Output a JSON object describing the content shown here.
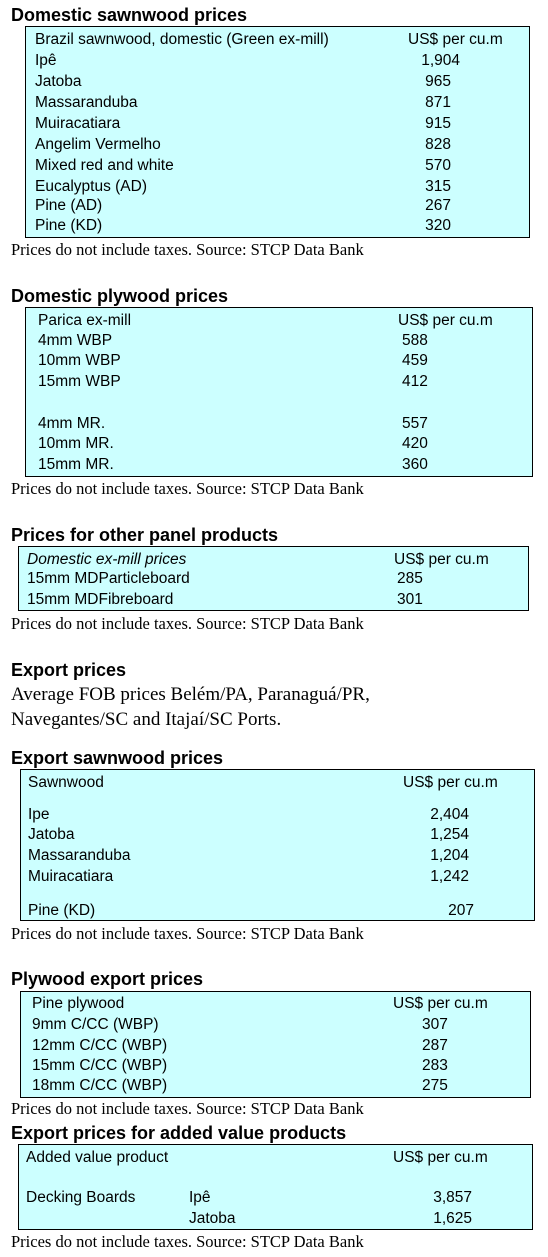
{
  "domestic_sawnwood": {
    "title": "Domestic sawnwood prices",
    "header_label": "Brazil sawnwood, domestic (Green ex-mill)",
    "header_unit": "US$ per cu.m",
    "rows": [
      {
        "label": "Ipê",
        "value": "1,904"
      },
      {
        "label": "Jatoba",
        "value": "965"
      },
      {
        "label": "Massaranduba",
        "value": "871"
      },
      {
        "label": "Muiracatiara",
        "value": "915"
      },
      {
        "label": "Angelim Vermelho",
        "value": "828"
      },
      {
        "label": "Mixed red and white",
        "value": "570"
      },
      {
        "label": "Eucalyptus (AD)",
        "value": "315"
      },
      {
        "label": "Pine (AD)",
        "value": "267"
      },
      {
        "label": "Pine (KD)",
        "value": "320"
      }
    ],
    "note": "Prices do not include taxes. Source: STCP Data Bank"
  },
  "domestic_plywood": {
    "title": "Domestic plywood prices",
    "header_label": "Parica ex-mill",
    "header_unit": "US$ per cu.m",
    "rows": [
      {
        "label": "4mm WBP",
        "value": "588"
      },
      {
        "label": "10mm WBP",
        "value": "459"
      },
      {
        "label": "15mm WBP",
        "value": "412"
      },
      {
        "label": "4mm MR.",
        "value": "557"
      },
      {
        "label": "10mm MR.",
        "value": "420"
      },
      {
        "label": "15mm MR.",
        "value": "360"
      }
    ],
    "note": "Prices do not include taxes. Source: STCP Data Bank"
  },
  "other_panels": {
    "title": "Prices for other panel products",
    "header_label": "Domestic ex-mill prices",
    "header_unit": "US$ per cu.m",
    "rows": [
      {
        "label": "15mm MDParticleboard",
        "value": "285"
      },
      {
        "label": "15mm MDFibreboard",
        "value": "301"
      }
    ],
    "note": "Prices do not include taxes. Source: STCP Data Bank"
  },
  "export_prices": {
    "title": "Export prices",
    "text_line1": "Average FOB prices Belém/PA, Paranaguá/PR,",
    "text_line2": "Navegantes/SC and Itajaí/SC Ports."
  },
  "export_sawnwood": {
    "title": "Export sawnwood prices",
    "header_label": "Sawnwood",
    "header_unit": "US$ per cu.m",
    "rows": [
      {
        "label": "Ipe",
        "value": "2,404"
      },
      {
        "label": "Jatoba",
        "value": "1,254"
      },
      {
        "label": "Massaranduba",
        "value": "1,204"
      },
      {
        "label": "Muiracatiara",
        "value": "1,242"
      },
      {
        "label": "Pine (KD)",
        "value": "207"
      }
    ],
    "note": "Prices do not include taxes. Source: STCP Data Bank"
  },
  "plywood_export": {
    "title": "Plywood export prices",
    "header_label": "Pine plywood",
    "header_unit": "US$ per cu.m",
    "rows": [
      {
        "label": "9mm C/CC (WBP)",
        "value": "307"
      },
      {
        "label": "12mm C/CC (WBP)",
        "value": "287"
      },
      {
        "label": "15mm C/CC (WBP)",
        "value": "283"
      },
      {
        "label": "18mm C/CC (WBP)",
        "value": "275"
      }
    ],
    "note": "Prices do not include taxes. Source: STCP Data Bank"
  },
  "added_value": {
    "title": "Export prices for added value products",
    "header_label": "Added value product",
    "header_unit": "US$ per cu.m",
    "product": "Decking Boards",
    "rows": [
      {
        "label": "Ipê",
        "value": "3,857"
      },
      {
        "label": "Jatoba",
        "value": "1,625"
      }
    ],
    "note": "Prices do not include taxes. Source: STCP Data Bank"
  }
}
